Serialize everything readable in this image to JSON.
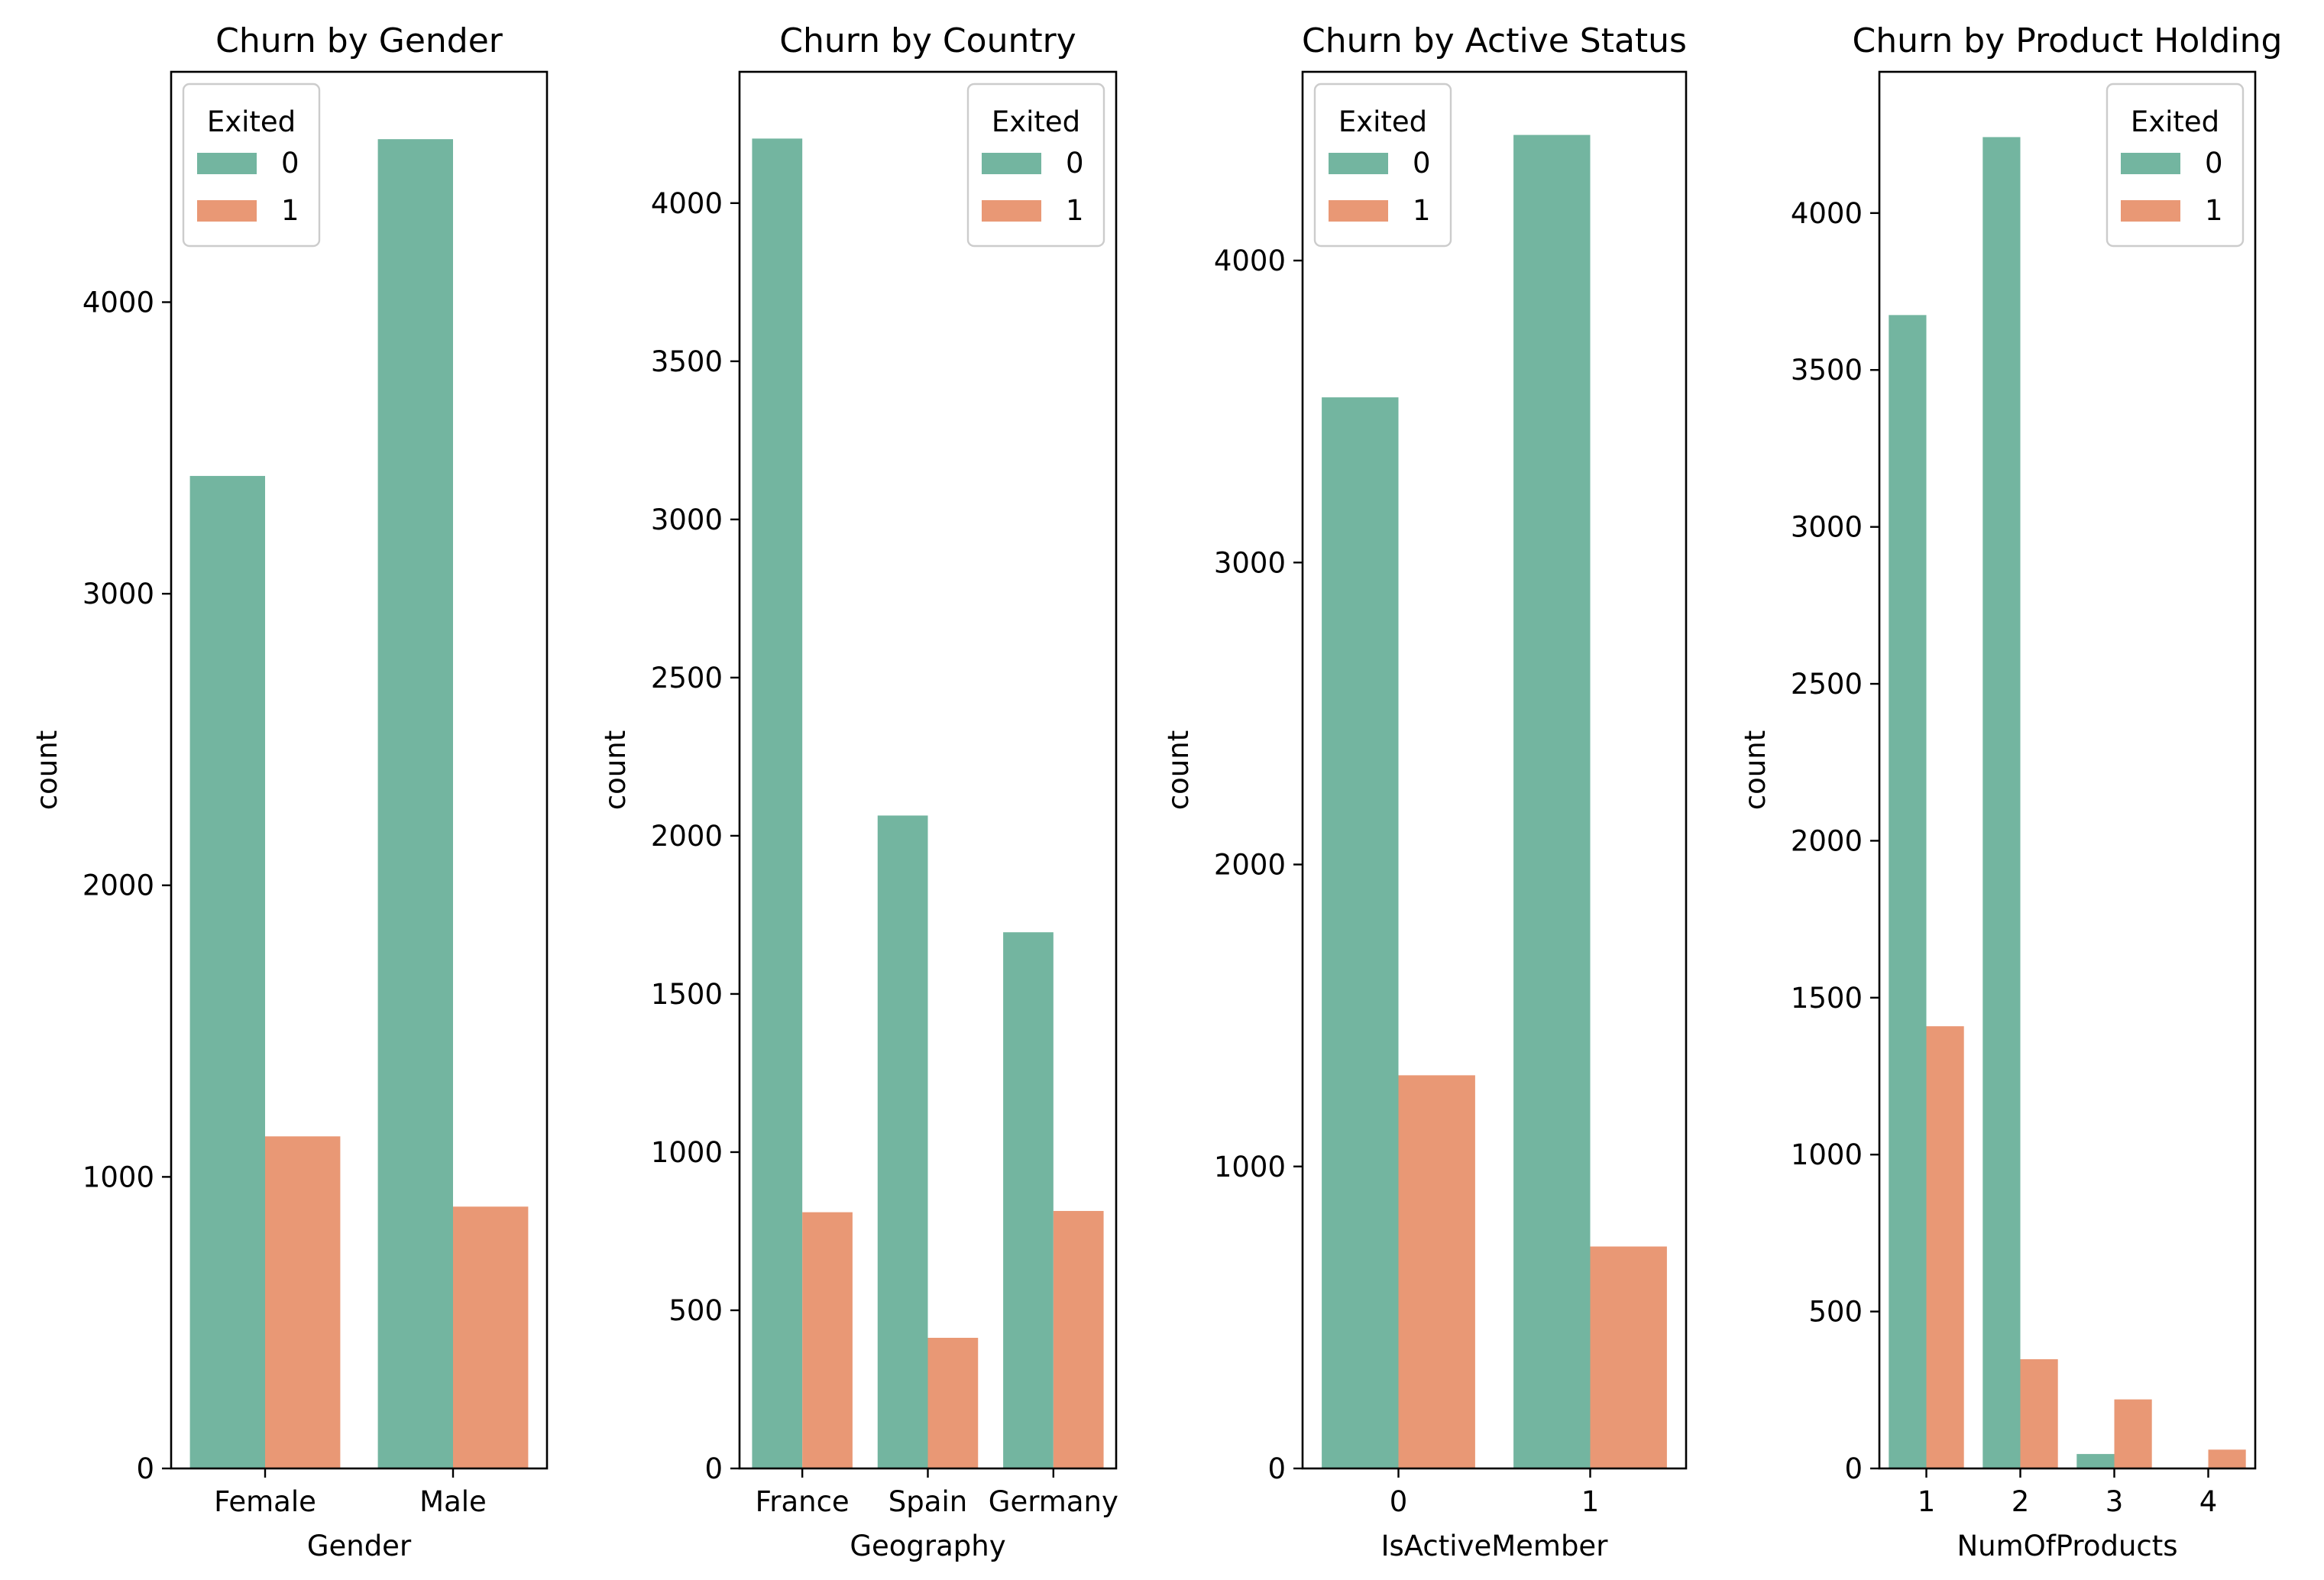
{
  "colors": {
    "exited_0": "#73b5a0",
    "exited_1": "#e99875",
    "axis": "#000000",
    "background": "#ffffff"
  },
  "chart_data": [
    {
      "type": "bar",
      "title": "Churn by Gender",
      "xlabel": "Gender",
      "ylabel": "count",
      "categories": [
        "Female",
        "Male"
      ],
      "ylim": [
        0,
        4790
      ],
      "yticks": [
        0,
        1000,
        2000,
        3000,
        4000
      ],
      "legend": {
        "title": "Exited",
        "placement": "top-left"
      },
      "series": [
        {
          "name": "0",
          "values": [
            3404,
            4559
          ]
        },
        {
          "name": "1",
          "values": [
            1139,
            898
          ]
        }
      ]
    },
    {
      "type": "bar",
      "title": "Churn by Country",
      "xlabel": "Geography",
      "ylabel": "count",
      "categories": [
        "France",
        "Spain",
        "Germany"
      ],
      "ylim": [
        0,
        4415
      ],
      "yticks": [
        0,
        500,
        1000,
        1500,
        2000,
        2500,
        3000,
        3500,
        4000
      ],
      "legend": {
        "title": "Exited",
        "placement": "top-right"
      },
      "series": [
        {
          "name": "0",
          "values": [
            4204,
            2064,
            1695
          ]
        },
        {
          "name": "1",
          "values": [
            810,
            413,
            814
          ]
        }
      ]
    },
    {
      "type": "bar",
      "title": "Churn by Active Status",
      "xlabel": "IsActiveMember",
      "ylabel": "count",
      "categories": [
        "0",
        "1"
      ],
      "ylim": [
        0,
        4625
      ],
      "yticks": [
        0,
        1000,
        2000,
        3000,
        4000
      ],
      "legend": {
        "title": "Exited",
        "placement": "top-left"
      },
      "series": [
        {
          "name": "0",
          "values": [
            3547,
            4416
          ]
        },
        {
          "name": "1",
          "values": [
            1302,
            735
          ]
        }
      ]
    },
    {
      "type": "bar",
      "title": "Churn by Product Holding",
      "xlabel": "NumOfProducts",
      "ylabel": "count",
      "categories": [
        "1",
        "2",
        "3",
        "4"
      ],
      "ylim": [
        0,
        4450
      ],
      "yticks": [
        0,
        500,
        1000,
        1500,
        2000,
        2500,
        3000,
        3500,
        4000
      ],
      "legend": {
        "title": "Exited",
        "placement": "top-right"
      },
      "series": [
        {
          "name": "0",
          "values": [
            3675,
            4242,
            46,
            0
          ]
        },
        {
          "name": "1",
          "values": [
            1409,
            348,
            220,
            60
          ]
        }
      ]
    }
  ]
}
